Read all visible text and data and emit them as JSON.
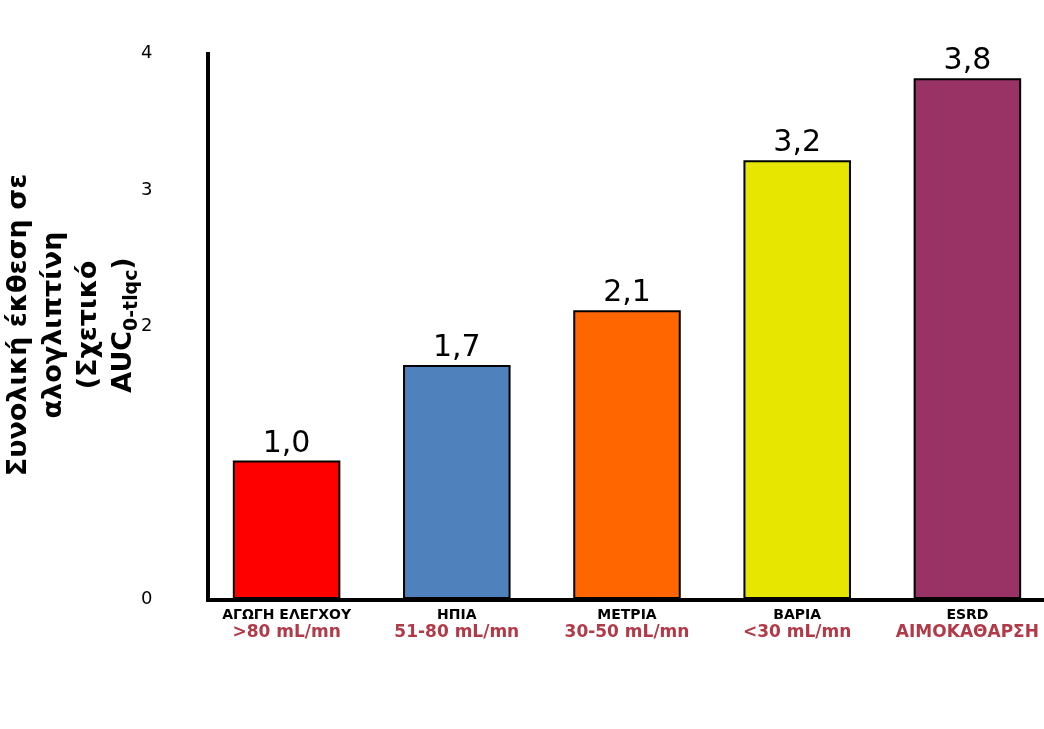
{
  "chart_data": {
    "type": "bar",
    "ylabel": "Συνολική έκθεση σε αλογλιπτίνη (Σχετικό AUC$_{0-tlqc}$)",
    "categories": [
      "ΑΓΩΓΗ ΕΛΕΓΧΟΥ\n>80 mL/mn",
      "ΗΠΙΑ\n51-80 mL/mn",
      "ΜΕΤΡΙΑ\n30-50 mL/mn",
      "ΒΑΡΙΑ\n<30 mL/mn",
      "ESRD\nΑΙΜΟΚΑΘΑΡΣΗ"
    ],
    "values": [
      1.0,
      1.7,
      2.1,
      3.2,
      3.8
    ],
    "value_labels": [
      "1,0",
      "1,7",
      "2,1",
      "3,2",
      "3,8"
    ],
    "colors": [
      "#ff0000",
      "#4f81bd",
      "#ff6600",
      "#e6e600",
      "#993366"
    ],
    "ylim": [
      0,
      4
    ],
    "yticks": [
      0,
      2,
      3,
      4
    ],
    "grid": false
  }
}
